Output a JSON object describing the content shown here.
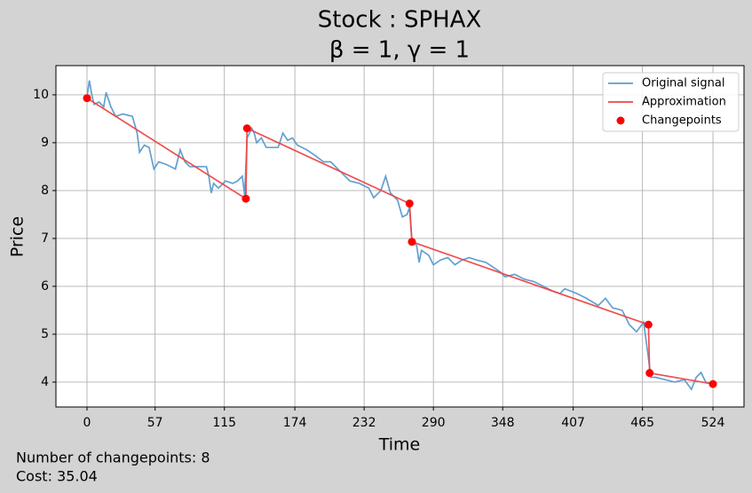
{
  "chart_data": {
    "type": "line",
    "title": "Stock : SPHAX",
    "subtitle": "β = 1, γ = 1",
    "x_label": "Time",
    "y_label": "Price",
    "annotations": [
      "Number of changepoints: 8",
      "Cost: 35.04"
    ],
    "xlim": [
      -26,
      550
    ],
    "ylim": [
      3.48,
      10.61
    ],
    "xticks": [
      0,
      57,
      115,
      174,
      232,
      290,
      348,
      407,
      465,
      524
    ],
    "yticks": [
      4,
      5,
      6,
      7,
      8,
      9,
      10
    ],
    "grid": true,
    "legend": "upper-right",
    "series": [
      {
        "name": "Original signal",
        "color": "#5a9bcf",
        "style": "line",
        "x": [
          0,
          2,
          4,
          6,
          10,
          14,
          16,
          20,
          24,
          30,
          38,
          42,
          44,
          48,
          52,
          56,
          60,
          66,
          74,
          78,
          82,
          86,
          100,
          102,
          104,
          106,
          110,
          116,
          122,
          126,
          130,
          132,
          134,
          136,
          138,
          140,
          142,
          146,
          150,
          160,
          164,
          168,
          172,
          176,
          184,
          190,
          198,
          204,
          212,
          220,
          228,
          236,
          240,
          246,
          250,
          254,
          260,
          264,
          268,
          270,
          272,
          276,
          278,
          280,
          286,
          290,
          296,
          302,
          308,
          314,
          320,
          326,
          334,
          340,
          346,
          350,
          358,
          366,
          374,
          382,
          390,
          396,
          400,
          410,
          418,
          428,
          434,
          440,
          448,
          454,
          460,
          466,
          470,
          472,
          476,
          484,
          492,
          500,
          506,
          510,
          514,
          518,
          524
        ],
        "values": [
          9.95,
          10.3,
          10.0,
          9.8,
          9.85,
          9.75,
          10.05,
          9.75,
          9.55,
          9.6,
          9.55,
          9.2,
          8.8,
          8.95,
          8.9,
          8.45,
          8.6,
          8.55,
          8.45,
          8.85,
          8.6,
          8.5,
          8.5,
          8.3,
          7.95,
          8.15,
          8.05,
          8.2,
          8.15,
          8.2,
          8.3,
          7.9,
          9.1,
          9.2,
          9.3,
          9.2,
          9.0,
          9.1,
          8.9,
          8.9,
          9.2,
          9.05,
          9.1,
          8.95,
          8.85,
          8.75,
          8.6,
          8.6,
          8.4,
          8.2,
          8.15,
          8.05,
          7.85,
          8.0,
          8.3,
          7.95,
          7.8,
          7.45,
          7.5,
          7.65,
          6.95,
          6.85,
          6.5,
          6.75,
          6.65,
          6.45,
          6.55,
          6.6,
          6.45,
          6.55,
          6.6,
          6.55,
          6.5,
          6.4,
          6.3,
          6.2,
          6.25,
          6.15,
          6.1,
          6.0,
          5.9,
          5.85,
          5.95,
          5.85,
          5.75,
          5.6,
          5.75,
          5.55,
          5.5,
          5.2,
          5.05,
          5.25,
          4.5,
          4.1,
          4.1,
          4.05,
          4.0,
          4.05,
          3.85,
          4.1,
          4.2,
          4.0,
          3.95
        ]
      },
      {
        "name": "Approximation",
        "color": "#ee4444",
        "style": "line",
        "x": [
          0,
          133,
          134,
          270,
          272,
          470,
          471,
          524
        ],
        "values": [
          9.93,
          7.83,
          9.3,
          7.73,
          6.93,
          5.2,
          4.19,
          3.96
        ]
      },
      {
        "name": "Changepoints",
        "color": "#ff0000",
        "style": "scatter",
        "x": [
          0,
          133,
          134,
          270,
          272,
          470,
          471,
          524
        ],
        "values": [
          9.93,
          7.83,
          9.3,
          7.73,
          6.93,
          5.2,
          4.19,
          3.96
        ]
      }
    ]
  }
}
